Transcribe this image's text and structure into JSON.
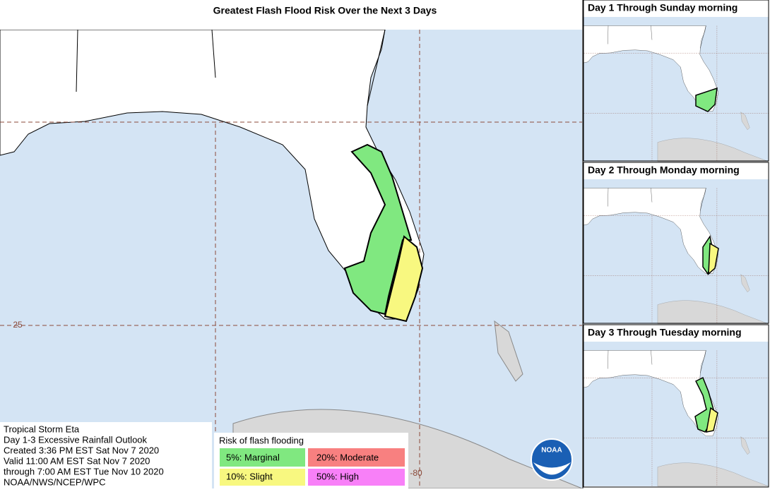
{
  "title": "Greatest Flash Flood Risk Over the Next 3 Days",
  "panels": [
    "Day 1 Through Sunday morning",
    "Day 2 Through Monday morning",
    "Day 3 Through Tuesday morning"
  ],
  "info": [
    "Tropical Storm Eta",
    "Day 1-3 Excessive Rainfall Outlook",
    "Created 3:36 PM EST Sat Nov 7 2020",
    "Valid 11:00 AM EST Sat Nov 7 2020",
    "through 7:00 AM EST Tue Nov 10 2020",
    "NOAA/NWS/NCEP/WPC"
  ],
  "legend": {
    "title": "Risk of flash flooding",
    "items": [
      "5%: Marginal",
      "20%: Moderate",
      "10%: Slight",
      "50%: High"
    ]
  },
  "grid_labels": {
    "lat": "25",
    "lon": "-80"
  },
  "logo": "NOAA"
}
